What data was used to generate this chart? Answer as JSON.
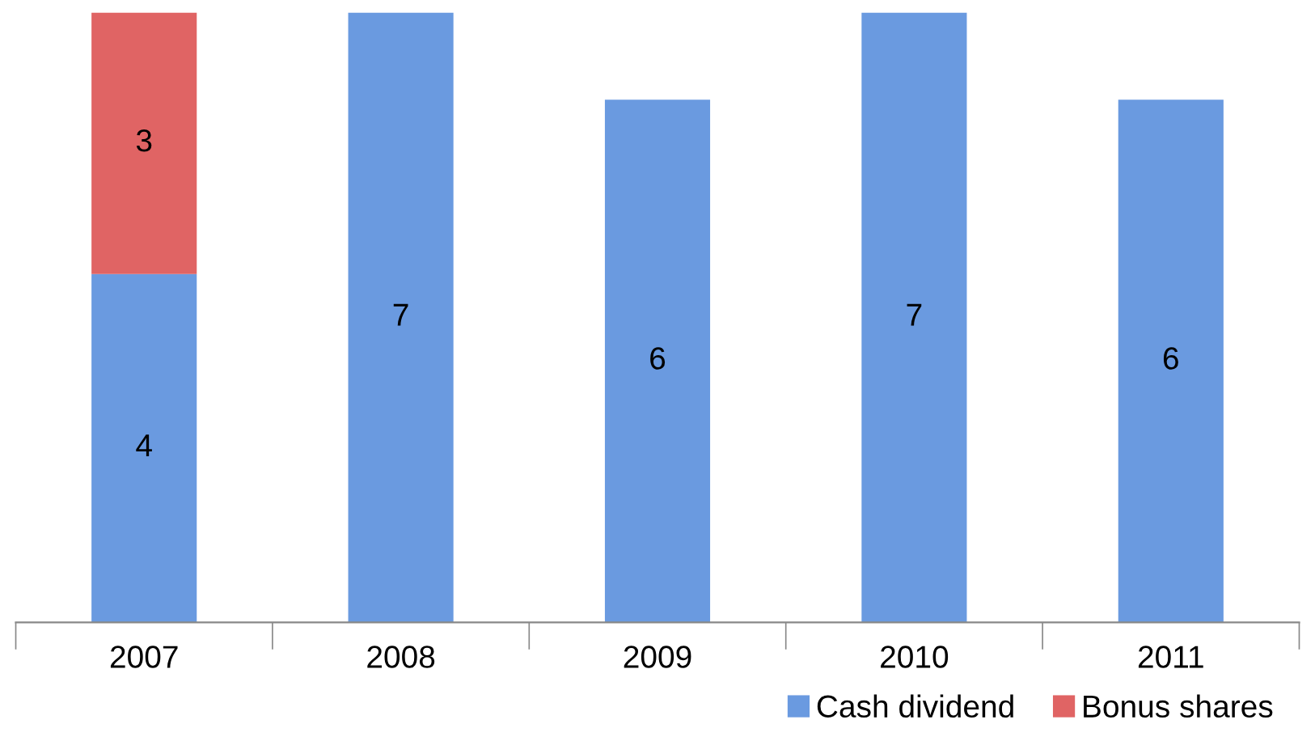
{
  "chart_data": {
    "type": "bar",
    "stacked": true,
    "categories": [
      "2007",
      "2008",
      "2009",
      "2010",
      "2011"
    ],
    "series": [
      {
        "name": "Cash dividend",
        "color": "#6a9ae0",
        "values": [
          4,
          7,
          6,
          7,
          6
        ]
      },
      {
        "name": "Bonus shares",
        "color": "#e06464",
        "values": [
          3,
          null,
          null,
          null,
          null
        ]
      }
    ],
    "data_labels": true,
    "tick_labels": "x",
    "legend": "bottom right",
    "grid": false
  }
}
